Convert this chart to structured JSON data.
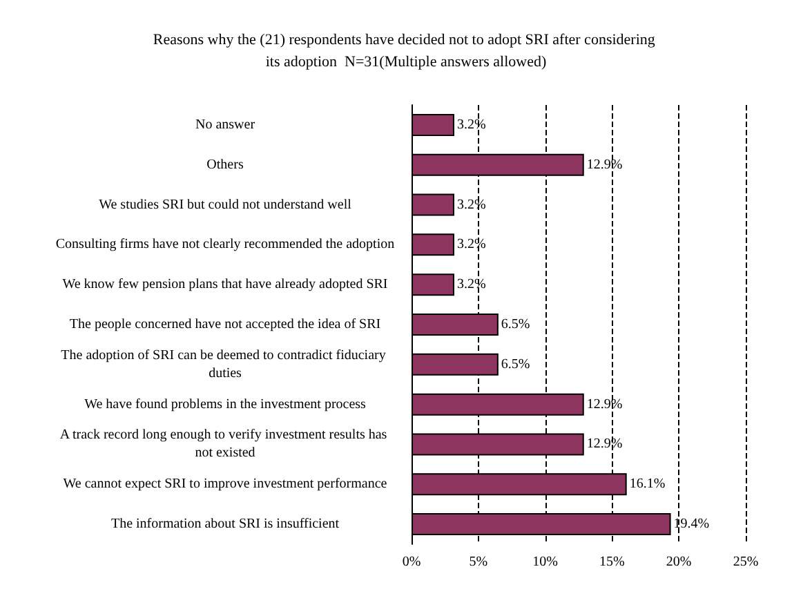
{
  "chart_data": {
    "type": "bar",
    "orientation": "horizontal",
    "title": "Reasons why the (21) respondents have decided not to adopt SRI after considering its adoption  N=31(Multiple answers allowed)",
    "categories": [
      "No answer",
      "Others",
      "We studies SRI but could not understand well",
      "Consulting firms have not clearly recommended the adoption",
      "We know few pension plans that have already adopted SRI",
      "The people concerned have not accepted the idea of SRI",
      "The adoption of SRI can be deemed to contradict fiduciary duties",
      "We have found problems in the investment process",
      "A track record long enough to verify investment results has not existed",
      "We cannot expect SRI to improve investment performance",
      "The information about SRI is insufficient"
    ],
    "values": [
      3.2,
      12.9,
      3.2,
      3.2,
      3.2,
      6.5,
      6.5,
      12.9,
      12.9,
      16.1,
      19.4
    ],
    "value_labels": [
      "3.2%",
      "12.9%",
      "3.2%",
      "3.2%",
      "3.2%",
      "6.5%",
      "6.5%",
      "12.9%",
      "12.9%",
      "16.1%",
      "19.4%"
    ],
    "color": "#8e3560",
    "xlim": [
      0,
      25
    ],
    "xticks": [
      {
        "value": 0,
        "label": "0%"
      },
      {
        "value": 5,
        "label": "5%"
      },
      {
        "value": 10,
        "label": "10%"
      },
      {
        "value": 15,
        "label": "15%"
      },
      {
        "value": 20,
        "label": "20%"
      },
      {
        "value": 25,
        "label": "25%"
      }
    ],
    "grid": "x",
    "line_style": "dashed"
  }
}
